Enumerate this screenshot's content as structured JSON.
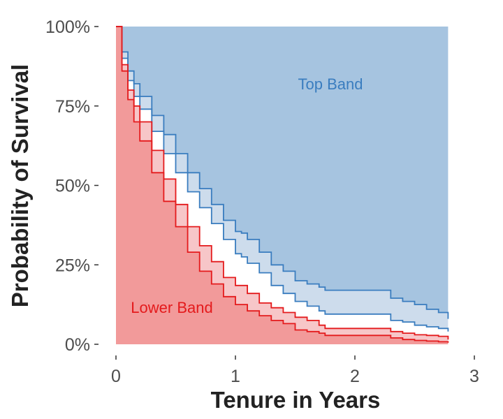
{
  "chart_data": {
    "type": "area",
    "xlabel": "Tenure in Years",
    "ylabel": "Probability of Survival",
    "xlim": [
      0,
      3
    ],
    "ylim": [
      0,
      1
    ],
    "x_ticks": [
      0,
      1,
      2,
      3
    ],
    "x_tick_labels": [
      "0",
      "1",
      "2",
      "3"
    ],
    "y_ticks": [
      0,
      0.25,
      0.5,
      0.75,
      1
    ],
    "y_tick_labels": [
      "0%",
      "25%",
      "50%",
      "75%",
      "100%"
    ],
    "grid": false,
    "x_end": 2.78,
    "top_band": {
      "label": "Top Band",
      "color": "#3a7dbf",
      "fill": "#a6c4e0",
      "ci_fill": "#cddcec",
      "x": [
        0,
        0.05,
        0.1,
        0.15,
        0.2,
        0.3,
        0.4,
        0.5,
        0.6,
        0.7,
        0.8,
        0.9,
        1.0,
        1.05,
        1.1,
        1.2,
        1.3,
        1.4,
        1.5,
        1.6,
        1.7,
        1.75,
        1.8,
        1.9,
        2.0,
        2.1,
        2.2,
        2.3,
        2.4,
        2.5,
        2.6,
        2.7,
        2.78
      ],
      "upper": [
        1.0,
        0.92,
        0.86,
        0.82,
        0.78,
        0.72,
        0.66,
        0.6,
        0.54,
        0.49,
        0.44,
        0.39,
        0.355,
        0.35,
        0.33,
        0.29,
        0.25,
        0.23,
        0.2,
        0.19,
        0.18,
        0.17,
        0.17,
        0.17,
        0.17,
        0.17,
        0.17,
        0.145,
        0.135,
        0.125,
        0.11,
        0.1,
        0.08
      ],
      "lower": [
        1.0,
        0.9,
        0.83,
        0.78,
        0.74,
        0.67,
        0.6,
        0.54,
        0.48,
        0.43,
        0.38,
        0.33,
        0.285,
        0.275,
        0.255,
        0.225,
        0.185,
        0.16,
        0.135,
        0.12,
        0.105,
        0.095,
        0.095,
        0.095,
        0.095,
        0.095,
        0.095,
        0.075,
        0.07,
        0.06,
        0.055,
        0.05,
        0.04
      ]
    },
    "lower_band": {
      "label": "Lower Band",
      "color": "#e41a1c",
      "fill": "#f29a9a",
      "ci_fill": "#f7c6c8",
      "x": [
        0,
        0.05,
        0.1,
        0.15,
        0.2,
        0.3,
        0.4,
        0.5,
        0.6,
        0.7,
        0.8,
        0.9,
        1.0,
        1.1,
        1.2,
        1.3,
        1.4,
        1.5,
        1.6,
        1.7,
        1.75,
        1.8,
        1.9,
        2.0,
        2.1,
        2.2,
        2.3,
        2.4,
        2.5,
        2.6,
        2.7,
        2.78
      ],
      "upper": [
        1.0,
        0.88,
        0.8,
        0.75,
        0.7,
        0.61,
        0.52,
        0.44,
        0.37,
        0.31,
        0.26,
        0.21,
        0.185,
        0.16,
        0.13,
        0.115,
        0.1,
        0.085,
        0.075,
        0.06,
        0.05,
        0.05,
        0.05,
        0.05,
        0.05,
        0.05,
        0.04,
        0.035,
        0.03,
        0.028,
        0.025,
        0.015
      ],
      "lower": [
        1.0,
        0.86,
        0.77,
        0.7,
        0.64,
        0.54,
        0.45,
        0.37,
        0.29,
        0.23,
        0.19,
        0.15,
        0.125,
        0.105,
        0.09,
        0.075,
        0.065,
        0.045,
        0.04,
        0.035,
        0.028,
        0.028,
        0.028,
        0.028,
        0.028,
        0.028,
        0.02,
        0.015,
        0.012,
        0.01,
        0.008,
        0.005
      ]
    }
  }
}
